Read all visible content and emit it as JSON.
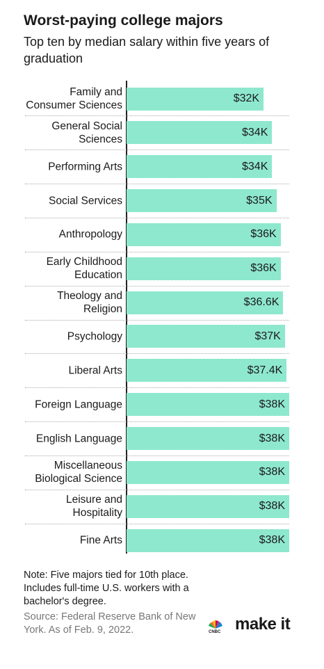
{
  "chart_data": {
    "type": "bar",
    "orientation": "horizontal",
    "title": "Worst-paying college majors",
    "subtitle": "Top ten by median salary within five years of graduation",
    "categories": [
      "Family and Consumer Sciences",
      "General Social Sciences",
      "Performing Arts",
      "Social Services",
      "Anthropology",
      "Early Childhood Education",
      "Theology and Religion",
      "Psychology",
      "Liberal Arts",
      "Foreign Language",
      "English Language",
      "Miscellaneous Biological Science",
      "Leisure and Hospitality",
      "Fine Arts"
    ],
    "values": [
      32,
      34,
      34,
      35,
      36,
      36,
      36.6,
      37,
      37.4,
      38,
      38,
      38,
      38,
      38
    ],
    "value_labels": [
      "$32K",
      "$34K",
      "$34K",
      "$35K",
      "$36K",
      "$36K",
      "$36.6K",
      "$37K",
      "$37.4K",
      "$38K",
      "$38K",
      "$38K",
      "$38K",
      "$38K"
    ],
    "color": "#8ee8cd",
    "xlim": [
      0,
      38
    ],
    "note": "Note: Five majors tied for 10th place. Includes full-time U.S. workers with a bachelor's degree.",
    "source": "Source: Federal Reserve Bank of New York. As of Feb. 9, 2022.",
    "logo_small": "CNBC",
    "logo": "make it"
  }
}
